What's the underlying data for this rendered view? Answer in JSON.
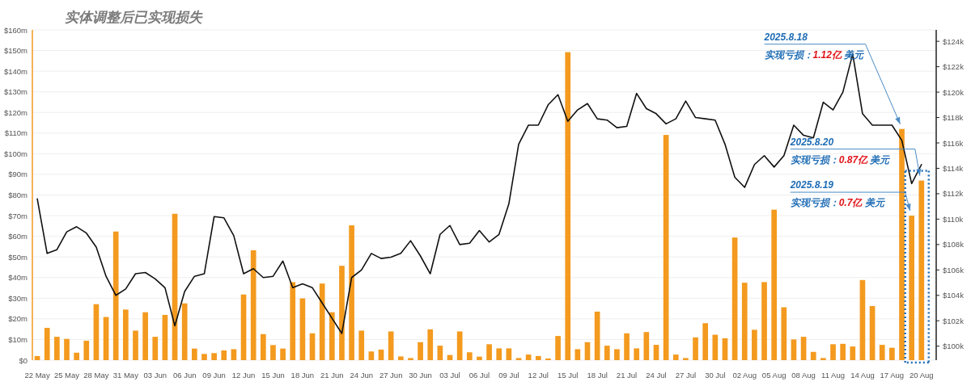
{
  "chart_data": {
    "type": "bar",
    "title": "实体调整后已实现损失",
    "x": [
      "2025-05-22",
      "2025-05-23",
      "2025-05-24",
      "2025-05-25",
      "2025-05-26",
      "2025-05-27",
      "2025-05-28",
      "2025-05-29",
      "2025-05-30",
      "2025-05-31",
      "2025-06-01",
      "2025-06-02",
      "2025-06-03",
      "2025-06-04",
      "2025-06-05",
      "2025-06-06",
      "2025-06-07",
      "2025-06-08",
      "2025-06-09",
      "2025-06-10",
      "2025-06-11",
      "2025-06-12",
      "2025-06-13",
      "2025-06-14",
      "2025-06-15",
      "2025-06-16",
      "2025-06-17",
      "2025-06-18",
      "2025-06-19",
      "2025-06-20",
      "2025-06-21",
      "2025-06-22",
      "2025-06-23",
      "2025-06-24",
      "2025-06-25",
      "2025-06-26",
      "2025-06-27",
      "2025-06-28",
      "2025-06-29",
      "2025-06-30",
      "2025-07-01",
      "2025-07-02",
      "2025-07-03",
      "2025-07-04",
      "2025-07-05",
      "2025-07-06",
      "2025-07-07",
      "2025-07-08",
      "2025-07-09",
      "2025-07-10",
      "2025-07-11",
      "2025-07-12",
      "2025-07-13",
      "2025-07-14",
      "2025-07-15",
      "2025-07-16",
      "2025-07-17",
      "2025-07-18",
      "2025-07-19",
      "2025-07-20",
      "2025-07-21",
      "2025-07-22",
      "2025-07-23",
      "2025-07-24",
      "2025-07-25",
      "2025-07-26",
      "2025-07-27",
      "2025-07-28",
      "2025-07-29",
      "2025-07-30",
      "2025-07-31",
      "2025-08-01",
      "2025-08-02",
      "2025-08-03",
      "2025-08-04",
      "2025-08-05",
      "2025-08-06",
      "2025-08-07",
      "2025-08-08",
      "2025-08-09",
      "2025-08-10",
      "2025-08-11",
      "2025-08-12",
      "2025-08-13",
      "2025-08-14",
      "2025-08-15",
      "2025-08-16",
      "2025-08-17",
      "2025-08-18",
      "2025-08-19",
      "2025-08-20"
    ],
    "series": [
      {
        "type": "bar",
        "color": "#f39a1f",
        "values": [
          2,
          15.6,
          11.3,
          10.3,
          3.6,
          9.4,
          27.1,
          20.9,
          62.3,
          24.5,
          14.3,
          23.2,
          11.3,
          21.9,
          70.9,
          27.5,
          5.6,
          3,
          3.4,
          4.7,
          5.3,
          31.8,
          53.2,
          12.6,
          7.3,
          5.6,
          37.8,
          29.9,
          13,
          37.1,
          23.2,
          45.7,
          65.3,
          14.3,
          4.2,
          5.1,
          13.9,
          1.8,
          1,
          8.7,
          14.9,
          7,
          2.5,
          13.9,
          3.8,
          1.7,
          7.7,
          5.7,
          5.7,
          1,
          2.7,
          2,
          0.8,
          11.7,
          149.2,
          5.3,
          8.7,
          23.5,
          7,
          5.3,
          13,
          5.7,
          13.6,
          7.4,
          109.1,
          2.7,
          1,
          11,
          17.9,
          12.3,
          10.6,
          59.4,
          37.5,
          14.7,
          37.8,
          72.9,
          25.6,
          10,
          11.3,
          4,
          1,
          7.7,
          7.9,
          6.6,
          38.8,
          26.2,
          7.4,
          6,
          112,
          70,
          87
        ]
      },
      {
        "type": "line",
        "color": "#111111",
        "axis": "y2",
        "values": [
          111.6,
          107.3,
          107.6,
          109.0,
          109.4,
          108.9,
          107.8,
          105.5,
          104.0,
          104.5,
          105.7,
          105.8,
          105.3,
          104.6,
          101.6,
          104.3,
          105.5,
          105.7,
          110.2,
          110.1,
          108.7,
          105.7,
          106.1,
          105.4,
          105.5,
          106.7,
          104.6,
          104.9,
          104.6,
          103.4,
          102.2,
          101.0,
          105.4,
          106.0,
          107.3,
          106.9,
          107.0,
          107.3,
          108.3,
          107.1,
          105.7,
          108.8,
          109.5,
          108.0,
          108.1,
          109.1,
          108.2,
          108.8,
          111.2,
          115.9,
          117.4,
          117.4,
          119.0,
          119.8,
          117.7,
          118.6,
          119.1,
          117.9,
          117.8,
          117.2,
          117.3,
          119.9,
          118.7,
          118.3,
          117.5,
          117.9,
          119.3,
          118.0,
          117.9,
          117.8,
          115.9,
          113.3,
          112.5,
          114.3,
          115.0,
          114.1,
          115.0,
          117.4,
          116.6,
          116.4,
          119.2,
          118.6,
          120.0,
          123.0,
          118.3,
          117.4,
          117.4,
          117.4,
          116.2,
          112.8,
          114.3
        ]
      }
    ],
    "xlim": [
      "2025-05-21T12:00",
      "2025-08-21T12:00"
    ],
    "xticks": [
      {
        "value": "2025-05-22",
        "label": "22 May"
      },
      {
        "value": "2025-05-25",
        "label": "25 May"
      },
      {
        "value": "2025-05-28",
        "label": "28 May"
      },
      {
        "value": "2025-05-31",
        "label": "31 May"
      },
      {
        "value": "2025-06-03",
        "label": "03 Jun"
      },
      {
        "value": "2025-06-06",
        "label": "06 Jun"
      },
      {
        "value": "2025-06-09",
        "label": "09 Jun"
      },
      {
        "value": "2025-06-12",
        "label": "12 Jun"
      },
      {
        "value": "2025-06-15",
        "label": "15 Jun"
      },
      {
        "value": "2025-06-18",
        "label": "18 Jun"
      },
      {
        "value": "2025-06-21",
        "label": "21 Jun"
      },
      {
        "value": "2025-06-24",
        "label": "24 Jun"
      },
      {
        "value": "2025-06-27",
        "label": "27 Jun"
      },
      {
        "value": "2025-06-30",
        "label": "30 Jun"
      },
      {
        "value": "2025-07-03",
        "label": "03 Jul"
      },
      {
        "value": "2025-07-06",
        "label": "06 Jul"
      },
      {
        "value": "2025-07-09",
        "label": "09 Jul"
      },
      {
        "value": "2025-07-12",
        "label": "12 Jul"
      },
      {
        "value": "2025-07-15",
        "label": "15 Jul"
      },
      {
        "value": "2025-07-18",
        "label": "18 Jul"
      },
      {
        "value": "2025-07-21",
        "label": "21 Jul"
      },
      {
        "value": "2025-07-24",
        "label": "24 Jul"
      },
      {
        "value": "2025-07-27",
        "label": "27 Jul"
      },
      {
        "value": "2025-07-30",
        "label": "30 Jul"
      },
      {
        "value": "2025-08-02",
        "label": "02 Aug"
      },
      {
        "value": "2025-08-05",
        "label": "05 Aug"
      },
      {
        "value": "2025-08-08",
        "label": "08 Aug"
      },
      {
        "value": "2025-08-11",
        "label": "11 Aug"
      },
      {
        "value": "2025-08-14",
        "label": "14 Aug"
      },
      {
        "value": "2025-08-17",
        "label": "17 Aug"
      },
      {
        "value": "2025-08-20",
        "label": "20 Aug"
      }
    ],
    "ylim": [
      0,
      160
    ],
    "yticks": [
      {
        "value": 0,
        "label": "$0"
      },
      {
        "value": 10,
        "label": "$10m"
      },
      {
        "value": 20,
        "label": "$20m"
      },
      {
        "value": 30,
        "label": "$30m"
      },
      {
        "value": 40,
        "label": "$40m"
      },
      {
        "value": 50,
        "label": "$50m"
      },
      {
        "value": 60,
        "label": "$60m"
      },
      {
        "value": 70,
        "label": "$70m"
      },
      {
        "value": 80,
        "label": "$80m"
      },
      {
        "value": 90,
        "label": "$90m"
      },
      {
        "value": 100,
        "label": "$100m"
      },
      {
        "value": 110,
        "label": "$110m"
      },
      {
        "value": 120,
        "label": "$120m"
      },
      {
        "value": 130,
        "label": "$130m"
      },
      {
        "value": 140,
        "label": "$140m"
      },
      {
        "value": 150,
        "label": "$150m"
      },
      {
        "value": 160,
        "label": "$160m"
      }
    ],
    "y2lim": [
      98.9,
      124.9
    ],
    "y2ticks": [
      {
        "value": 100,
        "label": "$100k"
      },
      {
        "value": 102,
        "label": "$102k"
      },
      {
        "value": 104,
        "label": "$104k"
      },
      {
        "value": 106,
        "label": "$106k"
      },
      {
        "value": 108,
        "label": "$108k"
      },
      {
        "value": 110,
        "label": "$110k"
      },
      {
        "value": 112,
        "label": "$112k"
      },
      {
        "value": 114,
        "label": "$114k"
      },
      {
        "value": 116,
        "label": "$116k"
      },
      {
        "value": 118,
        "label": "$118k"
      },
      {
        "value": 120,
        "label": "$120k"
      },
      {
        "value": 122,
        "label": "$122k"
      },
      {
        "value": 124,
        "label": "$124k"
      }
    ],
    "grid": "y",
    "annotations": [
      {
        "text": "2025.8.18\n实现亏损：1.12亿 美元",
        "x": "2025-08-18",
        "y": 112
      },
      {
        "text": "2025.8.20\n实现亏损：0.87亿 美元",
        "x": "2025-08-20",
        "y": 87
      },
      {
        "text": "2025.8.19\n实现亏损：0.7亿 美元",
        "x": "2025-08-19",
        "y": 70
      }
    ]
  }
}
